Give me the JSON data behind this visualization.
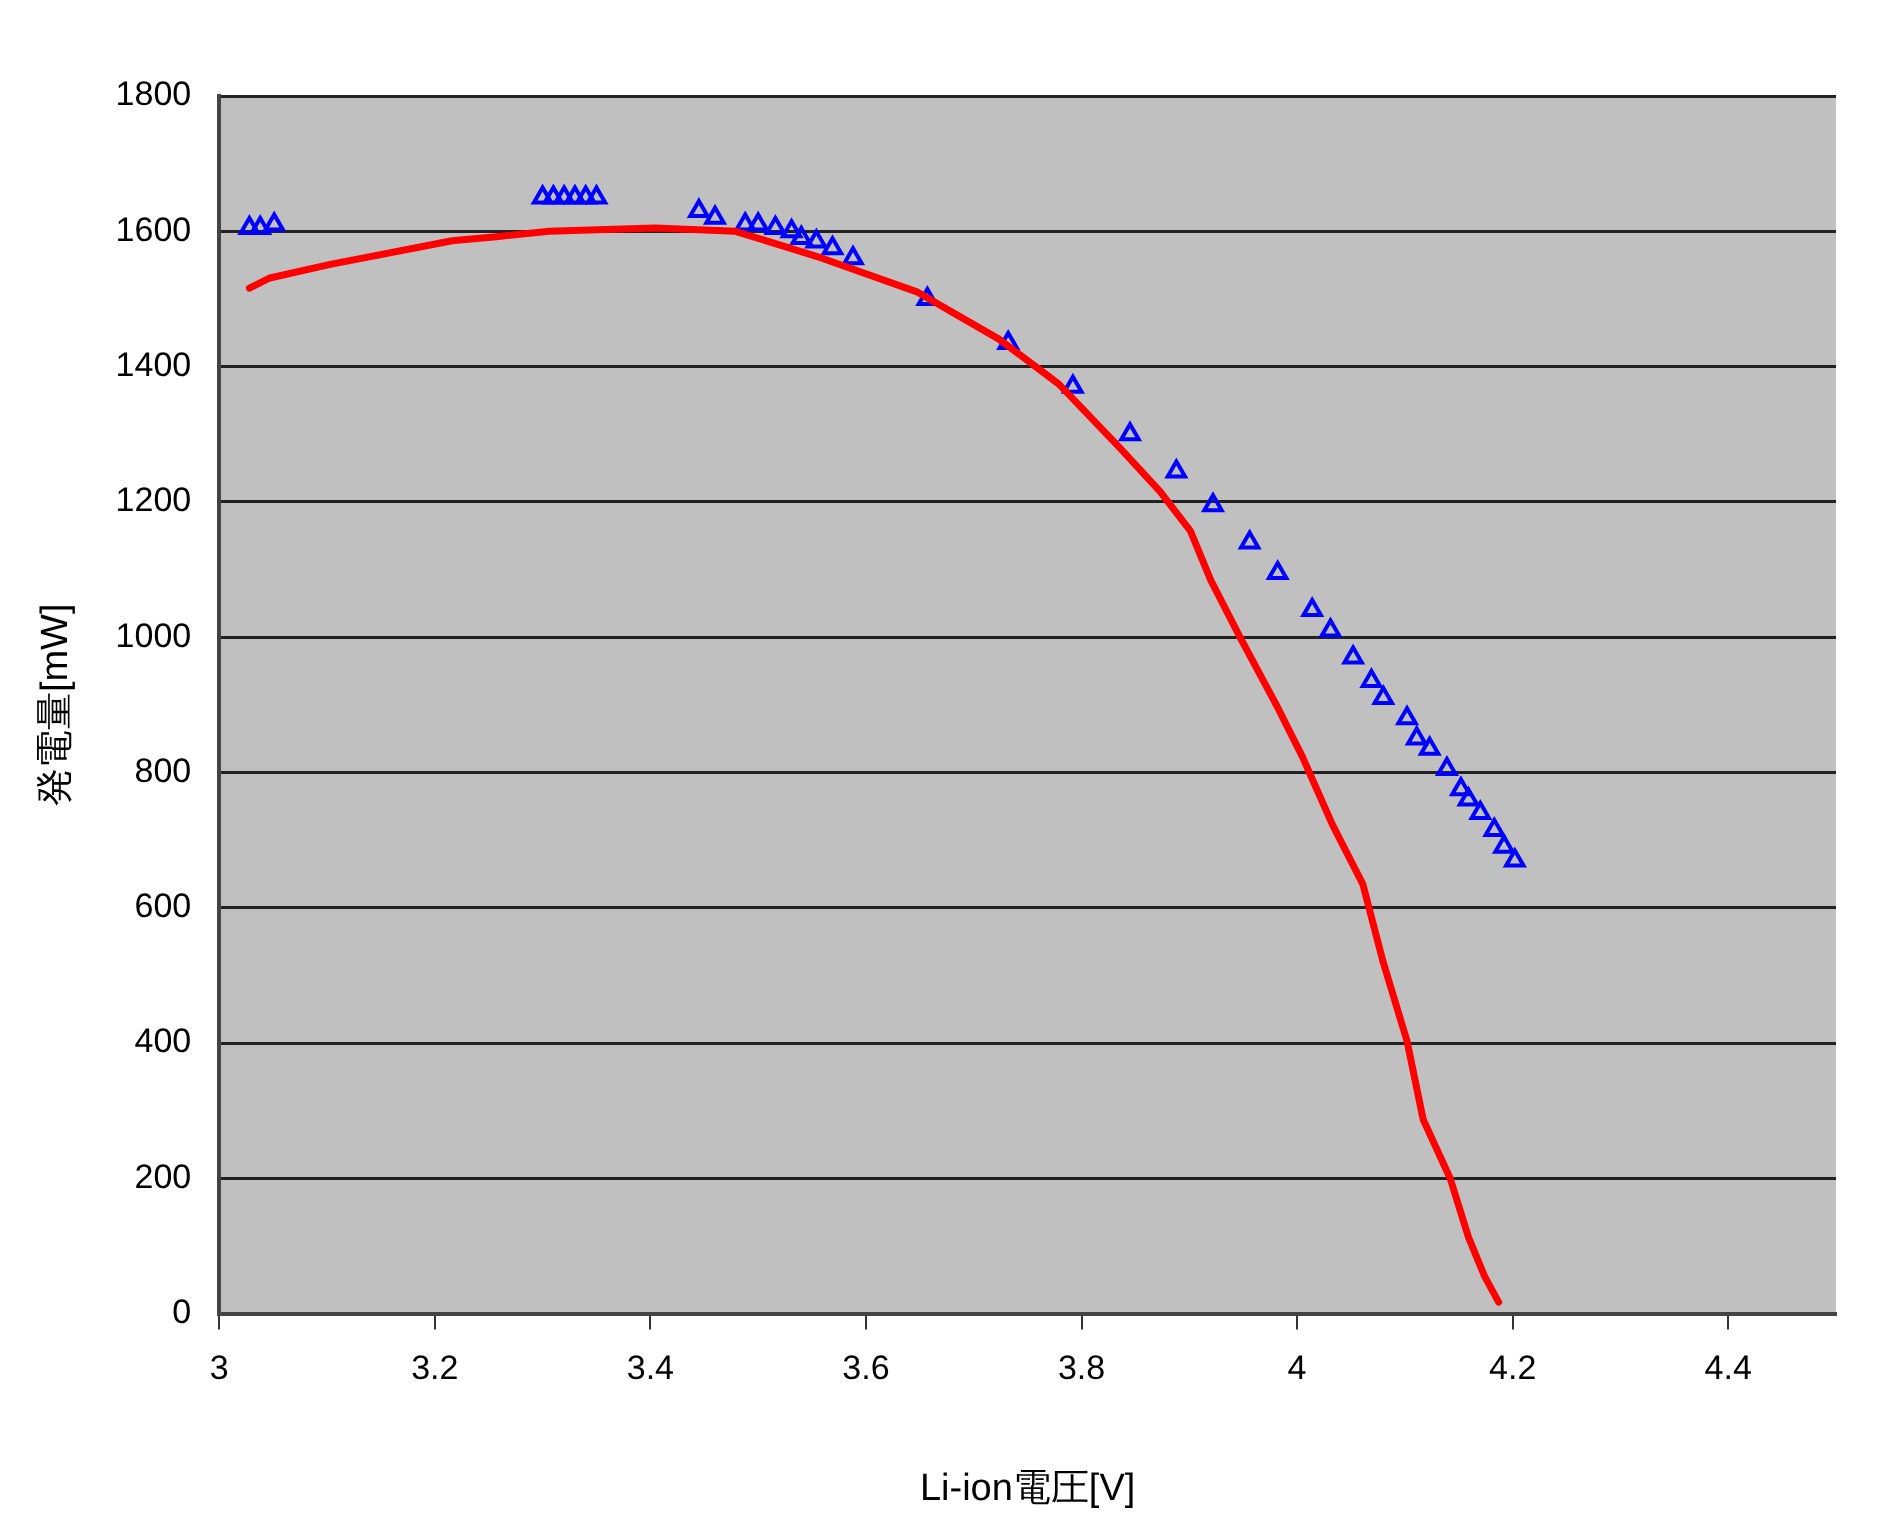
{
  "chart_data": {
    "type": "scatter",
    "xlabel": "Li-ion電圧[V]",
    "ylabel": "発電量[mW]",
    "xlim": [
      3,
      4.5
    ],
    "xticks": [
      3,
      3.2,
      3.4,
      3.6,
      3.8,
      4,
      4.2,
      4.4
    ],
    "ylim": [
      0,
      1800
    ],
    "yticks": [
      0,
      200,
      400,
      600,
      800,
      1000,
      1200,
      1400,
      1600,
      1800
    ],
    "grid": "y",
    "legend": false,
    "series": [
      {
        "type": "line",
        "color": "#ff0000",
        "marker": "none",
        "line_style": "solid",
        "x": [
          3.028,
          3.047,
          3.103,
          3.216,
          3.257,
          3.306,
          3.404,
          3.479,
          3.554,
          3.648,
          3.723,
          3.779,
          3.836,
          3.873,
          3.901,
          3.92,
          3.948,
          3.982,
          4.005,
          4.033,
          4.061,
          4.08,
          4.102,
          4.117,
          4.142,
          4.159,
          4.174,
          4.187
        ],
        "values": [
          1516,
          1531,
          1551,
          1586,
          1592,
          1600,
          1605,
          1600,
          1563,
          1510,
          1441,
          1374,
          1279,
          1215,
          1157,
          1084,
          997,
          896,
          823,
          722,
          635,
          519,
          403,
          287,
          200,
          113,
          55,
          17
        ]
      },
      {
        "color": "#0000ff",
        "marker": "triangle",
        "x": [
          3.028,
          3.038,
          3.051,
          3.3,
          3.31,
          3.32,
          3.33,
          3.34,
          3.35,
          3.445,
          3.46,
          3.488,
          3.5,
          3.516,
          3.531,
          3.54,
          3.554,
          3.569,
          3.588,
          3.657,
          3.732,
          3.792,
          3.845,
          3.888,
          3.922,
          3.956,
          3.982,
          4.014,
          4.031,
          4.052,
          4.069,
          4.08,
          4.102,
          4.111,
          4.123,
          4.139,
          4.152,
          4.159,
          4.17,
          4.183,
          4.192,
          4.202
        ],
        "values": [
          1605,
          1605,
          1610,
          1650,
          1650,
          1650,
          1650,
          1650,
          1650,
          1630,
          1620,
          1610,
          1610,
          1605,
          1600,
          1590,
          1585,
          1575,
          1560,
          1500,
          1435,
          1370,
          1300,
          1245,
          1195,
          1140,
          1095,
          1040,
          1010,
          970,
          935,
          910,
          880,
          850,
          835,
          805,
          775,
          760,
          740,
          715,
          690,
          670
        ]
      }
    ]
  }
}
